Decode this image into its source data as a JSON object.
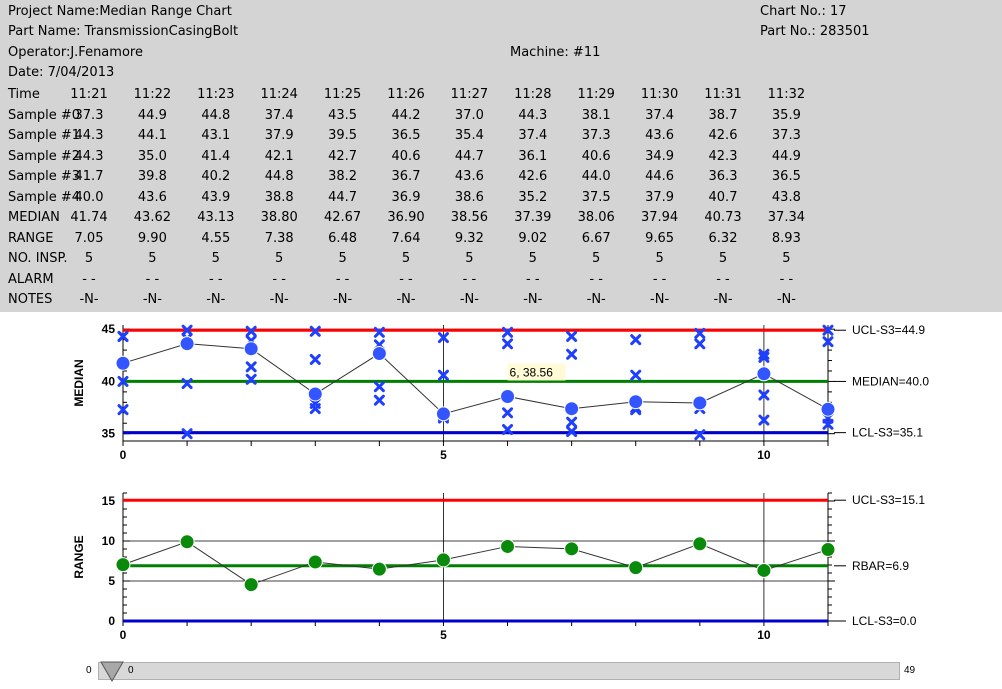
{
  "header": {
    "project_name": "Project Name:Median Range Chart",
    "part_name": "Part Name: TransmissionCasingBolt",
    "operator": "Operator:J.Fenamore",
    "date": "Date: 7/04/2013",
    "machine": "Machine: #11",
    "chart_no": "Chart No.: 17",
    "part_no": "Part No.: 283501"
  },
  "table": {
    "row_labels": [
      "Time",
      "Sample #0",
      "Sample #1",
      "Sample #2",
      "Sample #3",
      "Sample #4",
      "MEDIAN",
      "RANGE",
      "NO. INSP.",
      "ALARM",
      "NOTES"
    ],
    "times": [
      "11:21",
      "11:22",
      "11:23",
      "11:24",
      "11:25",
      "11:26",
      "11:27",
      "11:28",
      "11:29",
      "11:30",
      "11:31",
      "11:32"
    ],
    "samples": [
      [
        "37.3",
        "44.9",
        "44.8",
        "37.4",
        "43.5",
        "44.2",
        "37.0",
        "44.3",
        "38.1",
        "37.4",
        "38.7",
        "35.9"
      ],
      [
        "44.3",
        "44.1",
        "43.1",
        "37.9",
        "39.5",
        "36.5",
        "35.4",
        "37.4",
        "37.3",
        "43.6",
        "42.6",
        "37.3"
      ],
      [
        "44.3",
        "35.0",
        "41.4",
        "42.1",
        "42.7",
        "40.6",
        "44.7",
        "36.1",
        "40.6",
        "34.9",
        "42.3",
        "44.9"
      ],
      [
        "41.7",
        "39.8",
        "40.2",
        "44.8",
        "38.2",
        "36.7",
        "43.6",
        "42.6",
        "44.0",
        "44.6",
        "36.3",
        "36.5"
      ],
      [
        "40.0",
        "43.6",
        "43.9",
        "38.8",
        "44.7",
        "36.9",
        "38.6",
        "35.2",
        "37.5",
        "37.9",
        "40.7",
        "43.8"
      ]
    ],
    "median": [
      "41.74",
      "43.62",
      "43.13",
      "38.80",
      "42.67",
      "36.90",
      "38.56",
      "37.39",
      "38.06",
      "37.94",
      "40.73",
      "37.34"
    ],
    "range": [
      "7.05",
      "9.90",
      "4.55",
      "7.38",
      "6.48",
      "7.64",
      "9.32",
      "9.02",
      "6.67",
      "9.65",
      "6.32",
      "8.93"
    ],
    "no_insp": [
      "5",
      "5",
      "5",
      "5",
      "5",
      "5",
      "5",
      "5",
      "5",
      "5",
      "5",
      "5"
    ],
    "alarm": [
      "-   -",
      "-   -",
      "-   -",
      "-   -",
      "-   -",
      "-   -",
      "-   -",
      "-   -",
      "-   -",
      "-   -",
      "-   -",
      "-   -"
    ],
    "notes": [
      "-N-",
      "-N-",
      "-N-",
      "-N-",
      "-N-",
      "-N-",
      "-N-",
      "-N-",
      "-N-",
      "-N-",
      "-N-",
      "-N-"
    ]
  },
  "chart_data": [
    {
      "type": "line",
      "ylabel": "MEDIAN",
      "x": [
        0,
        1,
        2,
        3,
        4,
        5,
        6,
        7,
        8,
        9,
        10,
        11
      ],
      "xticks": [
        0,
        5,
        10
      ],
      "xlim": [
        0,
        11
      ],
      "ylim": [
        34.3,
        45.4
      ],
      "yticks": [
        35,
        40,
        45
      ],
      "series": [
        {
          "values": [
            41.74,
            43.62,
            43.13,
            38.8,
            42.67,
            36.9,
            38.56,
            37.39,
            38.06,
            37.94,
            40.73,
            37.34
          ]
        }
      ],
      "scatter_points": [
        [
          37.3,
          44.9,
          44.8,
          37.4,
          43.5,
          44.2,
          37.0,
          44.3,
          38.1,
          37.4,
          38.7,
          35.9
        ],
        [
          44.3,
          44.1,
          43.1,
          37.9,
          39.5,
          36.5,
          35.4,
          37.4,
          37.3,
          43.6,
          42.6,
          37.3
        ],
        [
          44.3,
          35.0,
          41.4,
          42.1,
          42.7,
          40.6,
          44.7,
          36.1,
          40.6,
          34.9,
          42.3,
          44.9
        ],
        [
          41.7,
          39.8,
          40.2,
          44.8,
          38.2,
          36.7,
          43.6,
          42.6,
          44.0,
          44.6,
          36.3,
          36.5
        ],
        [
          40.0,
          43.6,
          43.9,
          38.8,
          44.7,
          36.9,
          38.6,
          35.2,
          37.5,
          37.9,
          40.7,
          43.8
        ]
      ],
      "limits": [
        {
          "label": "UCL-S3=44.9",
          "value": 44.9,
          "color": "#ff0000"
        },
        {
          "label": "MEDIAN=40.0",
          "value": 40.0,
          "color": "#008000"
        },
        {
          "label": "LCL-S3=35.1",
          "value": 35.1,
          "color": "#0000cc"
        }
      ],
      "tooltip": {
        "text": "6, 38.56",
        "x": 6,
        "y": 38.56
      }
    },
    {
      "type": "line",
      "ylabel": "RANGE",
      "x": [
        0,
        1,
        2,
        3,
        4,
        5,
        6,
        7,
        8,
        9,
        10,
        11
      ],
      "xticks": [
        0,
        5,
        10
      ],
      "xlim": [
        0,
        11
      ],
      "ylim": [
        0,
        16
      ],
      "yticks": [
        0,
        5,
        10,
        15
      ],
      "series": [
        {
          "values": [
            7.05,
            9.9,
            4.55,
            7.38,
            6.48,
            7.64,
            9.32,
            9.02,
            6.67,
            9.65,
            6.32,
            8.93
          ]
        }
      ],
      "limits": [
        {
          "label": "UCL-S3=15.1",
          "value": 15.1,
          "color": "#ff0000"
        },
        {
          "label": "RBAR=6.9",
          "value": 6.9,
          "color": "#008000"
        },
        {
          "label": "LCL-S3=0.0",
          "value": 0.0,
          "color": "#0000cc"
        }
      ]
    }
  ],
  "scrollbar": {
    "min": "0",
    "max": "49",
    "value": "0"
  },
  "colors": {
    "header_bg": "#d4d4d4",
    "ucl": "#ff0000",
    "center": "#008000",
    "lcl": "#0000cc",
    "sample_marker": "#1f3fff",
    "range_marker": "#008000"
  }
}
